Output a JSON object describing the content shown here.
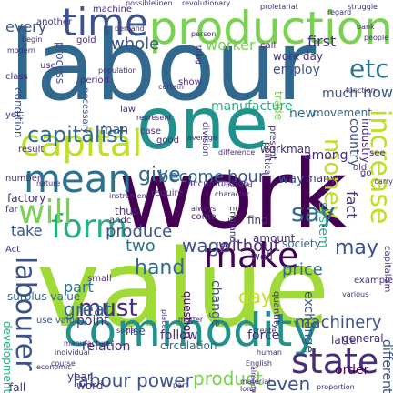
{
  "words": [
    {
      "text": "labour",
      "color": "#31688e",
      "rot": 0
    },
    {
      "text": "value",
      "color": "#a0da39",
      "rot": 0
    },
    {
      "text": "work",
      "color": "#440154",
      "rot": 0
    },
    {
      "text": "one",
      "color": "#21918c",
      "rot": 0
    },
    {
      "text": "commodity",
      "color": "#21918c",
      "rot": 0
    },
    {
      "text": "production",
      "color": "#7ad151",
      "rot": 0
    },
    {
      "text": "capital",
      "color": "#bddf26",
      "rot": 0
    },
    {
      "text": "time",
      "color": "#3b528b",
      "rot": 0
    },
    {
      "text": "mean",
      "color": "#2c728e",
      "rot": 0
    },
    {
      "text": "form",
      "color": "#28ae80",
      "rot": 0
    },
    {
      "text": "will",
      "color": "#7ad151",
      "rot": 0
    },
    {
      "text": "make",
      "color": "#440154",
      "rot": 0
    },
    {
      "text": "state",
      "color": "#472d7b",
      "rot": 0
    },
    {
      "text": "labourer",
      "color": "#3b528b",
      "rot": 90
    },
    {
      "text": "increase",
      "color": "#bddf26",
      "rot": 90
    },
    {
      "text": "money",
      "color": "#bddf26",
      "rot": 90
    },
    {
      "text": "say",
      "color": "#31688e",
      "rot": 0
    },
    {
      "text": "etc",
      "color": "#2c728e",
      "rot": 0
    },
    {
      "text": "capitalist",
      "color": "#31688e",
      "rot": 0
    },
    {
      "text": "give",
      "color": "#31688e",
      "rot": 0
    },
    {
      "text": "must",
      "color": "#472d7b",
      "rot": 0
    },
    {
      "text": "hand",
      "color": "#31688e",
      "rot": 0
    },
    {
      "text": "may",
      "color": "#3b528b",
      "rot": 0
    },
    {
      "text": "labour power",
      "color": "#3b528b",
      "rot": 0
    },
    {
      "text": "product",
      "color": "#7ad151",
      "rot": 0
    },
    {
      "text": "even",
      "color": "#3b528b",
      "rot": 0
    },
    {
      "text": "machinery",
      "color": "#3b528b",
      "rot": 0
    },
    {
      "text": "price",
      "color": "#31688e",
      "rot": 0
    },
    {
      "text": "great",
      "color": "#31688e",
      "rot": 0
    },
    {
      "text": "part",
      "color": "#2c728e",
      "rot": 0
    },
    {
      "text": "wage",
      "color": "#3b528b",
      "rot": 0
    },
    {
      "text": "without",
      "color": "#472d7b",
      "rot": 0
    },
    {
      "text": "two",
      "color": "#2c728e",
      "rot": 0
    },
    {
      "text": "produce",
      "color": "#3b528b",
      "rot": 0
    },
    {
      "text": "take",
      "color": "#3b528b",
      "rot": 0
    },
    {
      "text": "become",
      "color": "#31688e",
      "rot": 0
    },
    {
      "text": "hour",
      "color": "#3b528b",
      "rot": 0
    },
    {
      "text": "whole",
      "color": "#3b528b",
      "rot": 0
    },
    {
      "text": "worker",
      "color": "#7ad151",
      "rot": 0
    },
    {
      "text": "first",
      "color": "#472d7b",
      "rot": 0
    },
    {
      "text": "now",
      "color": "#3b528b",
      "rot": 0
    },
    {
      "text": "man",
      "color": "#3b528b",
      "rot": 0
    },
    {
      "text": "day",
      "color": "#bddf26",
      "rot": 0
    },
    {
      "text": "every",
      "color": "#3b528b",
      "rot": 0
    },
    {
      "text": "fact",
      "color": "#472d7b",
      "rot": 90
    },
    {
      "text": "system",
      "color": "#28ae80",
      "rot": 90
    },
    {
      "text": "industry",
      "color": "#472d7b",
      "rot": 90
    },
    {
      "text": "country",
      "color": "#3b528b",
      "rot": 90
    },
    {
      "text": "process",
      "color": "#3b528b",
      "rot": 90
    },
    {
      "text": "condition",
      "color": "#3b528b",
      "rot": 90
    },
    {
      "text": "employ",
      "color": "#3b528b",
      "rot": 0
    },
    {
      "text": "work day",
      "color": "#472d7b",
      "rot": 0
    },
    {
      "text": "manufacture",
      "color": "#28ae80",
      "rot": 0
    },
    {
      "text": "new",
      "color": "#31688e",
      "rot": 0
    },
    {
      "text": "movement",
      "color": "#31688e",
      "rot": 0
    },
    {
      "text": "workman",
      "color": "#472d7b",
      "rot": 0
    },
    {
      "text": "among",
      "color": "#472d7b",
      "rot": 0
    },
    {
      "text": "many",
      "color": "#472d7b",
      "rot": 0
    },
    {
      "text": "way",
      "color": "#3b528b",
      "rot": 0
    },
    {
      "text": "much",
      "color": "#3b528b",
      "rot": 0
    },
    {
      "text": "find",
      "color": "#472d7b",
      "rot": 0
    },
    {
      "text": "society",
      "color": "#31688e",
      "rot": 0
    },
    {
      "text": "well",
      "color": "#472d7b",
      "rot": 0
    },
    {
      "text": "change",
      "color": "#3b528b",
      "rot": 90
    },
    {
      "text": "question",
      "color": "#440154",
      "rot": 90
    },
    {
      "text": "exchange",
      "color": "#3b528b",
      "rot": 90
    },
    {
      "text": "relation",
      "color": "#472d7b",
      "rot": 0
    },
    {
      "text": "circulation",
      "color": "#31688e",
      "rot": 0
    },
    {
      "text": "surplus value",
      "color": "#31688e",
      "rot": 0
    },
    {
      "text": "small",
      "color": "#472d7b",
      "rot": 0
    },
    {
      "text": "use value",
      "color": "#3b528b",
      "rot": 0
    },
    {
      "text": "point",
      "color": "#472d7b",
      "rot": 0
    },
    {
      "text": "rise",
      "color": "#3b528b",
      "rot": 0
    },
    {
      "text": "follow",
      "color": "#472d7b",
      "rot": 0
    },
    {
      "text": "force",
      "color": "#472d7b",
      "rot": 0
    },
    {
      "text": "order",
      "color": "#440154",
      "rot": 0
    },
    {
      "text": "latter",
      "color": "#472d7b",
      "rot": 0
    },
    {
      "text": "general",
      "color": "#472d7b",
      "rot": 0
    },
    {
      "text": "different",
      "color": "#3b528b",
      "rot": 90
    },
    {
      "text": "development",
      "color": "#28ae80",
      "rot": 90
    },
    {
      "text": "year",
      "color": "#472d7b",
      "rot": 0
    },
    {
      "text": "word",
      "color": "#472d7b",
      "rot": 0
    },
    {
      "text": "fall",
      "color": "#472d7b",
      "rot": 0
    },
    {
      "text": "factory",
      "color": "#472d7b",
      "rot": 0
    },
    {
      "text": "number",
      "color": "#472d7b",
      "rot": 0
    },
    {
      "text": "result",
      "color": "#472d7b",
      "rot": 0
    },
    {
      "text": "class",
      "color": "#472d7b",
      "rot": 0
    },
    {
      "text": "another",
      "color": "#472d7b",
      "rot": 0
    },
    {
      "text": "gold",
      "color": "#472d7b",
      "rot": 0
    },
    {
      "text": "use",
      "color": "#472d7b",
      "rot": 0
    },
    {
      "text": "law",
      "color": "#472d7b",
      "rot": 0
    },
    {
      "text": "case",
      "color": "#472d7b",
      "rot": 0
    },
    {
      "text": "necessary",
      "color": "#3b528b",
      "rot": 90
    },
    {
      "text": "show",
      "color": "#472d7b",
      "rot": 0
    },
    {
      "text": "call",
      "color": "#472d7b",
      "rot": 0
    },
    {
      "text": "trade",
      "color": "#7ad151",
      "rot": 90
    },
    {
      "text": "thus",
      "color": "#472d7b",
      "rot": 0
    },
    {
      "text": "andc",
      "color": "#472d7b",
      "rot": 0
    },
    {
      "text": "England",
      "color": "#472d7b",
      "rot": 90
    },
    {
      "text": "amount",
      "color": "#472d7b",
      "rot": 0
    },
    {
      "text": "come",
      "color": "#472d7b",
      "rot": 0
    },
    {
      "text": "machine",
      "color": "#472d7b",
      "rot": 0
    },
    {
      "text": "period",
      "color": "#472d7b",
      "rot": 0
    },
    {
      "text": "yet",
      "color": "#472d7b",
      "rot": 0
    },
    {
      "text": "far",
      "color": "#472d7b",
      "rot": 0
    },
    {
      "text": "Act",
      "color": "#472d7b",
      "rot": 0
    },
    {
      "text": "accumulation",
      "color": "#472d7b",
      "rot": 0
    },
    {
      "text": "require",
      "color": "#472d7b",
      "rot": 0
    },
    {
      "text": "political",
      "color": "#472d7b",
      "rot": 90
    },
    {
      "text": "present",
      "color": "#472d7b",
      "rot": 90
    },
    {
      "text": "division",
      "color": "#472d7b",
      "rot": 90
    },
    {
      "text": "good",
      "color": "#472d7b",
      "rot": 0
    },
    {
      "text": "old",
      "color": "#472d7b",
      "rot": 0
    },
    {
      "text": "see",
      "color": "#472d7b",
      "rot": 0
    },
    {
      "text": "go",
      "color": "#472d7b",
      "rot": 0
    },
    {
      "text": "quantity",
      "color": "#472d7b",
      "rot": 90
    },
    {
      "text": "capitalism",
      "color": "#472d7b",
      "rot": 90
    },
    {
      "text": "example",
      "color": "#472d7b",
      "rot": 0
    },
    {
      "text": "social",
      "color": "#472d7b",
      "rot": 0
    },
    {
      "text": "human",
      "color": "#472d7b",
      "rot": 0
    },
    {
      "text": "English",
      "color": "#472d7b",
      "rot": 0
    },
    {
      "text": "part",
      "color": "#472d7b",
      "rot": 0
    },
    {
      "text": "proportion",
      "color": "#472d7b",
      "rot": 0
    },
    {
      "text": "material",
      "color": "#472d7b",
      "rot": 0
    },
    {
      "text": "place",
      "color": "#472d7b",
      "rot": 90
    },
    {
      "text": "already",
      "color": "#472d7b",
      "rot": 90
    },
    {
      "text": "matter",
      "color": "#472d7b",
      "rot": 0
    },
    {
      "text": "create",
      "color": "#472d7b",
      "rot": 0
    },
    {
      "text": "various",
      "color": "#472d7b",
      "rot": 0
    },
    {
      "text": "manufacturer",
      "color": "#472d7b",
      "rot": 0
    },
    {
      "text": "individual",
      "color": "#472d7b",
      "rot": 0
    },
    {
      "text": "economic",
      "color": "#472d7b",
      "rot": 0
    },
    {
      "text": "course",
      "color": "#472d7b",
      "rot": 0
    },
    {
      "text": "nature",
      "color": "#472d7b",
      "rot": 0
    },
    {
      "text": "begin",
      "color": "#472d7b",
      "rot": 0
    },
    {
      "text": "modern",
      "color": "#472d7b",
      "rot": 0
    },
    {
      "text": "demand",
      "color": "#472d7b",
      "rot": 0
    },
    {
      "text": "population",
      "color": "#472d7b",
      "rot": 0
    },
    {
      "text": "certain",
      "color": "#472d7b",
      "rot": 0
    },
    {
      "text": "revolutionary",
      "color": "#472d7b",
      "rot": 0
    },
    {
      "text": "possible",
      "color": "#472d7b",
      "rot": 0
    },
    {
      "text": "proletariat",
      "color": "#472d7b",
      "rot": 0
    },
    {
      "text": "struggle",
      "color": "#472d7b",
      "rot": 0
    },
    {
      "text": "regard",
      "color": "#472d7b",
      "rot": 0
    },
    {
      "text": "bank",
      "color": "#472d7b",
      "rot": 0
    },
    {
      "text": "people",
      "color": "#472d7b",
      "rot": 0
    },
    {
      "text": "person",
      "color": "#472d7b",
      "rot": 0
    },
    {
      "text": "linen",
      "color": "#472d7b",
      "rot": 0
    },
    {
      "text": "thing",
      "color": "#472d7b",
      "rot": 90
    },
    {
      "text": "difference",
      "color": "#472d7b",
      "rot": 0
    },
    {
      "text": "average",
      "color": "#472d7b",
      "rot": 0
    },
    {
      "text": "represent",
      "color": "#472d7b",
      "rot": 0
    },
    {
      "text": "instrument",
      "color": "#472d7b",
      "rot": 0
    },
    {
      "text": "always",
      "color": "#472d7b",
      "rot": 0
    },
    {
      "text": "instead",
      "color": "#472d7b",
      "rot": 0
    },
    {
      "text": "character",
      "color": "#472d7b",
      "rot": 0
    },
    {
      "text": "function",
      "color": "#472d7b",
      "rot": 0
    },
    {
      "text": "carry",
      "color": "#472d7b",
      "rot": 0
    },
    {
      "text": "long",
      "color": "#472d7b",
      "rot": 0
    }
  ]
}
